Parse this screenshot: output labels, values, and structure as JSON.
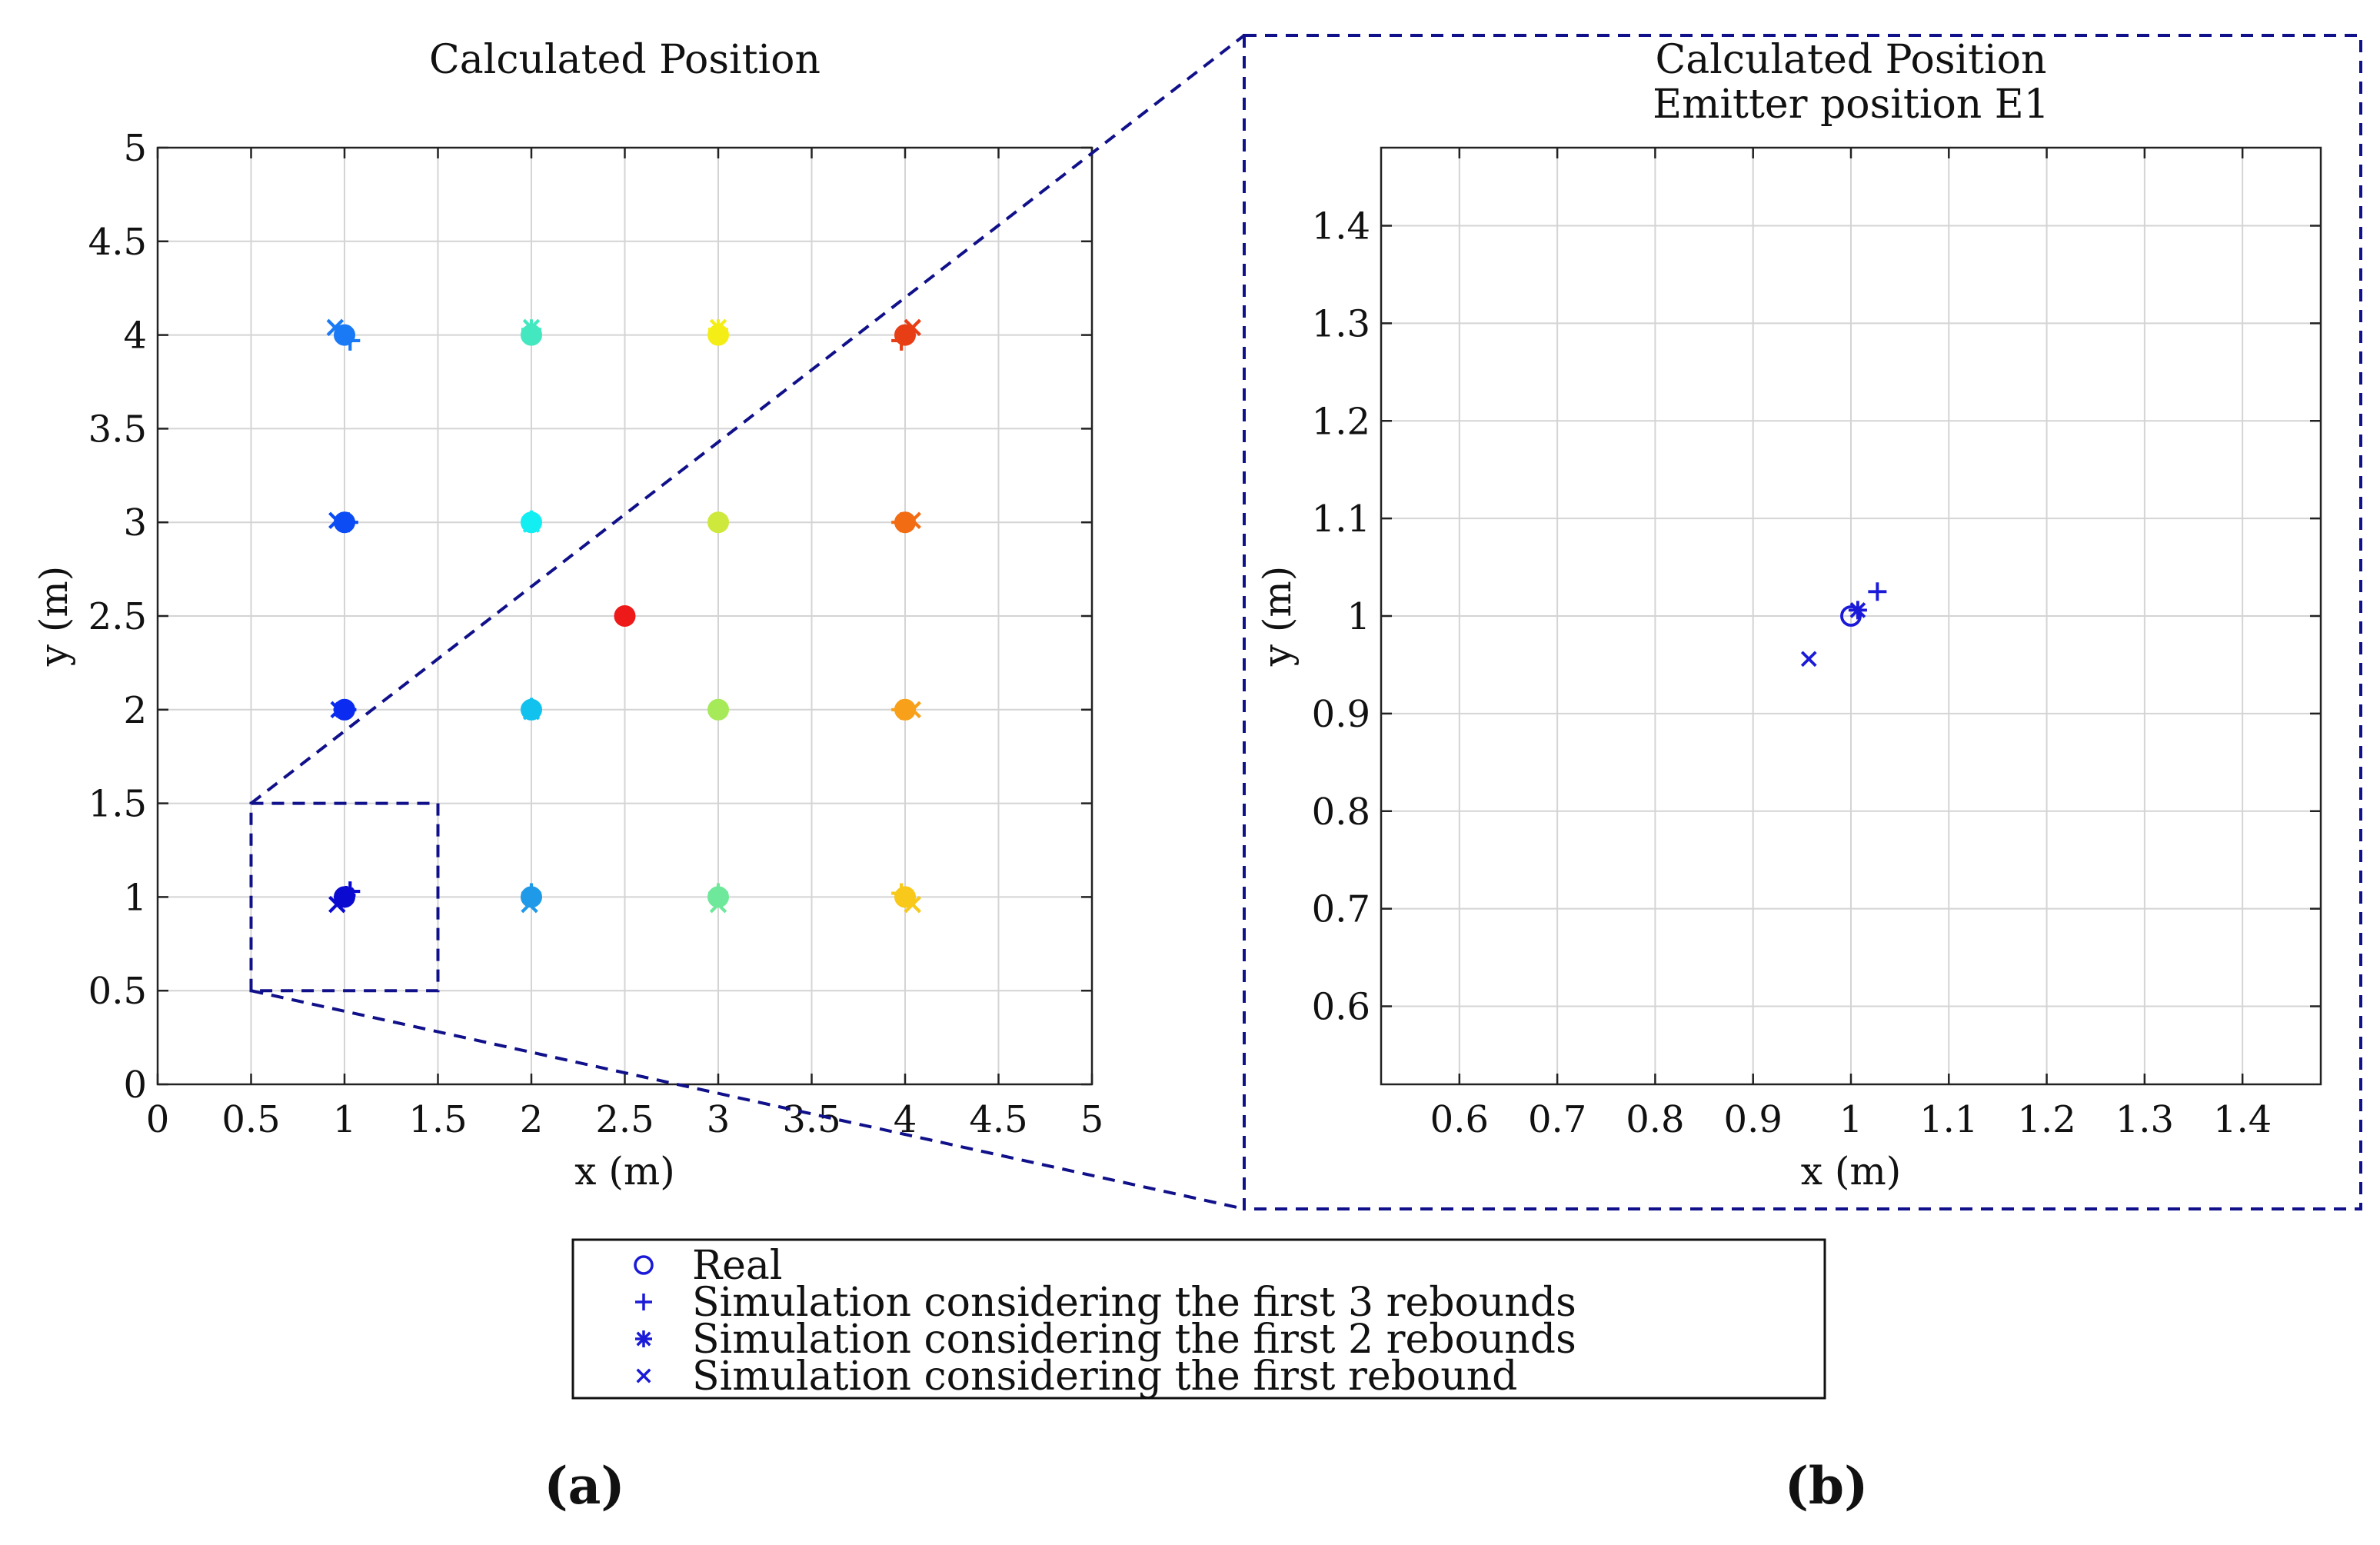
{
  "chart_data": [
    {
      "type": "scatter",
      "id": "a",
      "title": "Calculated Position",
      "xlabel": "x (m)",
      "ylabel": "y (m)",
      "xlim": [
        0,
        5
      ],
      "ylim": [
        0,
        5
      ],
      "xticks": [
        0,
        0.5,
        1,
        1.5,
        2,
        2.5,
        3,
        3.5,
        4,
        4.5,
        5
      ],
      "yticks": [
        0,
        0.5,
        1,
        1.5,
        2,
        2.5,
        3,
        3.5,
        4,
        4.5,
        5
      ],
      "xtick_labels": [
        "0",
        "0.5",
        "1",
        "1.5",
        "2",
        "2.5",
        "3",
        "3.5",
        "4",
        "4.5",
        "5"
      ],
      "ytick_labels": [
        "0",
        "0.5",
        "1",
        "1.5",
        "2",
        "2.5",
        "3",
        "3.5",
        "4",
        "4.5",
        "5"
      ],
      "grid": true,
      "zoom_region": {
        "x": [
          0.5,
          1.5
        ],
        "y": [
          0.5,
          1.5
        ]
      },
      "points": [
        {
          "x": 1,
          "y": 1,
          "color": "#0a0ad0",
          "sim3": [
            1.03,
            1.03
          ],
          "sim2": [
            1.01,
            1.01
          ],
          "sim1": [
            0.96,
            0.96
          ]
        },
        {
          "x": 1,
          "y": 2,
          "color": "#0b2cf0",
          "sim3": [
            1.01,
            2.0
          ],
          "sim2": [
            0.99,
            2.0
          ],
          "sim1": [
            0.97,
            2.0
          ]
        },
        {
          "x": 1,
          "y": 3,
          "color": "#0b4cf5",
          "sim3": [
            1.02,
            3.0
          ],
          "sim2": [
            1.0,
            3.0
          ],
          "sim1": [
            0.96,
            3.01
          ]
        },
        {
          "x": 1,
          "y": 4,
          "color": "#1a7af5",
          "sim3": [
            1.03,
            3.97
          ],
          "sim2": [
            1.0,
            4.0
          ],
          "sim1": [
            0.95,
            4.04
          ]
        },
        {
          "x": 2,
          "y": 1,
          "color": "#1f9ae8",
          "sim3": [
            2.0,
            1.02
          ],
          "sim2": [
            2.0,
            1.0
          ],
          "sim1": [
            1.99,
            0.96
          ]
        },
        {
          "x": 2,
          "y": 2,
          "color": "#12c2ee",
          "sim3": [
            2.0,
            2.01
          ],
          "sim2": [
            2.0,
            2.0
          ],
          "sim1": [
            2.0,
            1.99
          ]
        },
        {
          "x": 2,
          "y": 3,
          "color": "#12eef2",
          "sim3": [
            2.0,
            3.01
          ],
          "sim2": [
            2.0,
            3.0
          ],
          "sim1": [
            2.0,
            2.99
          ]
        },
        {
          "x": 2,
          "y": 4,
          "color": "#44e8c0",
          "sim3": [
            2.0,
            4.03
          ],
          "sim2": [
            2.0,
            4.0
          ],
          "sim1": [
            2.0,
            4.04
          ]
        },
        {
          "x": 2.5,
          "y": 2.5,
          "color": "#ee1a1a",
          "sim3": [
            2.5,
            2.5
          ],
          "sim2": [
            2.5,
            2.5
          ],
          "sim1": [
            2.5,
            2.5
          ]
        },
        {
          "x": 3,
          "y": 1,
          "color": "#6ee89a",
          "sim3": [
            3.0,
            1.02
          ],
          "sim2": [
            3.0,
            1.0
          ],
          "sim1": [
            3.0,
            0.96
          ]
        },
        {
          "x": 3,
          "y": 2,
          "color": "#a6ea5a",
          "sim3": [
            3.0,
            2.0
          ],
          "sim2": [
            3.0,
            2.0
          ],
          "sim1": [
            3.0,
            2.0
          ]
        },
        {
          "x": 3,
          "y": 3,
          "color": "#cfe83c",
          "sim3": [
            3.0,
            3.0
          ],
          "sim2": [
            3.0,
            3.0
          ],
          "sim1": [
            3.0,
            3.0
          ]
        },
        {
          "x": 3,
          "y": 4,
          "color": "#f4ee16",
          "sim3": [
            3.0,
            4.03
          ],
          "sim2": [
            3.0,
            4.0
          ],
          "sim1": [
            3.0,
            4.04
          ]
        },
        {
          "x": 4,
          "y": 1,
          "color": "#f8c81a",
          "sim3": [
            3.98,
            1.02
          ],
          "sim2": [
            4.0,
            1.0
          ],
          "sim1": [
            4.04,
            0.96
          ]
        },
        {
          "x": 4,
          "y": 2,
          "color": "#f8a01a",
          "sim3": [
            3.98,
            2.0
          ],
          "sim2": [
            4.0,
            2.0
          ],
          "sim1": [
            4.04,
            2.0
          ]
        },
        {
          "x": 4,
          "y": 3,
          "color": "#f26c14",
          "sim3": [
            3.98,
            3.0
          ],
          "sim2": [
            4.0,
            3.0
          ],
          "sim1": [
            4.04,
            3.01
          ]
        },
        {
          "x": 4,
          "y": 4,
          "color": "#e83e16",
          "sim3": [
            3.98,
            3.97
          ],
          "sim2": [
            4.0,
            4.0
          ],
          "sim1": [
            4.04,
            4.04
          ]
        }
      ]
    },
    {
      "type": "scatter",
      "id": "b",
      "title": "Calculated Position",
      "subtitle": "Emitter position E1",
      "xlabel": "x (m)",
      "ylabel": "y (m)",
      "xlim": [
        0.52,
        1.48
      ],
      "ylim": [
        0.52,
        1.48
      ],
      "xticks": [
        0.6,
        0.7,
        0.8,
        0.9,
        1,
        1.1,
        1.2,
        1.3,
        1.4
      ],
      "yticks": [
        0.6,
        0.7,
        0.8,
        0.9,
        1,
        1.1,
        1.2,
        1.3,
        1.4
      ],
      "xtick_labels": [
        "0.6",
        "0.7",
        "0.8",
        "0.9",
        "1",
        "1.1",
        "1.2",
        "1.3",
        "1.4"
      ],
      "ytick_labels": [
        "0.6",
        "0.7",
        "0.8",
        "0.9",
        "1",
        "1.1",
        "1.2",
        "1.3",
        "1.4"
      ],
      "grid": true,
      "color": "#1a1ad8",
      "series": [
        {
          "name": "Real",
          "marker": "o",
          "x": [
            1.0
          ],
          "y": [
            1.0
          ]
        },
        {
          "name": "Simulation considering the first 3 rebounds",
          "marker": "+",
          "x": [
            1.027
          ],
          "y": [
            1.025
          ]
        },
        {
          "name": "Simulation considering the first 2 rebounds",
          "marker": "*",
          "x": [
            1.007
          ],
          "y": [
            1.006
          ]
        },
        {
          "name": "Simulation considering the first rebound",
          "marker": "x",
          "x": [
            0.957
          ],
          "y": [
            0.956
          ]
        }
      ]
    }
  ],
  "legend": {
    "placement": "bottom-center",
    "color": "#1a1ad8",
    "items": [
      {
        "marker": "o",
        "label": "Real"
      },
      {
        "marker": "+",
        "label": "Simulation considering the first 3 rebounds"
      },
      {
        "marker": "*",
        "label": "Simulation considering the first 2 rebounds"
      },
      {
        "marker": "x",
        "label": "Simulation considering the first rebound"
      }
    ]
  },
  "panel_labels": {
    "a": "(a)",
    "b": "(b)"
  },
  "colors": {
    "zoom_box": "#10108a",
    "legend_marker": "#1a1ad8"
  }
}
